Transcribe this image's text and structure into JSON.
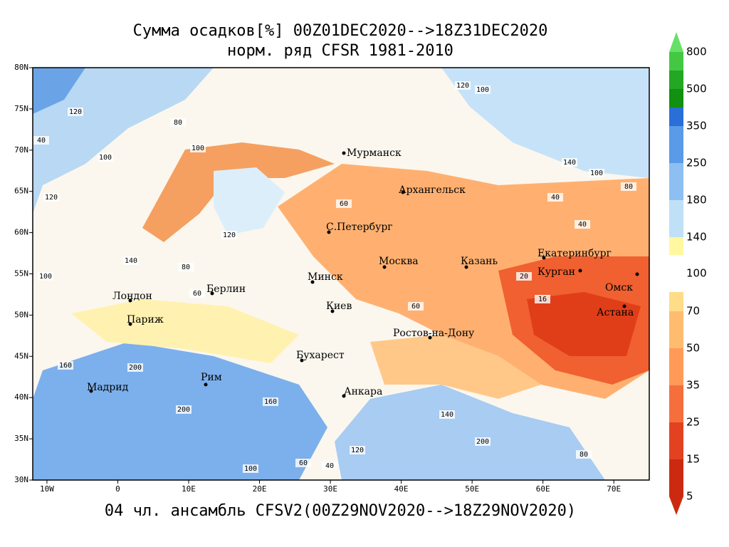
{
  "title": "Сумма осадков[%] 00Z01DEC2020-->18Z31DEC2020",
  "subtitle": "норм. ряд CFSR 1981-2010",
  "footer": "04 чл. ансамбль CFSV2(00Z29NOV2020-->18Z29NOV2020)",
  "map": {
    "xlim": [
      -12,
      75
    ],
    "ylim": [
      30,
      80
    ],
    "xticks": [
      {
        "value": -10,
        "label": "10W"
      },
      0,
      {
        "value": 10,
        "label": "10E"
      },
      {
        "value": 20,
        "label": "20E"
      },
      {
        "value": 30,
        "label": "30E"
      },
      {
        "value": 40,
        "label": "40E"
      },
      {
        "value": 50,
        "label": "50E"
      },
      {
        "value": 60,
        "label": "60E"
      },
      {
        "value": 70,
        "label": "70E"
      }
    ],
    "yticks": [
      {
        "value": 30,
        "label": "30N"
      },
      {
        "value": 35,
        "label": "35N"
      },
      {
        "value": 40,
        "label": "40N"
      },
      {
        "value": 45,
        "label": "45N"
      },
      {
        "value": 50,
        "label": "50N"
      },
      {
        "value": 55,
        "label": "55N"
      },
      {
        "value": 60,
        "label": "60N"
      },
      {
        "value": 65,
        "label": "65N"
      },
      {
        "value": 70,
        "label": "70N"
      },
      {
        "value": 75,
        "label": "75N"
      },
      {
        "value": 80,
        "label": "80N"
      }
    ],
    "cities": [
      "Мурманск",
      "Архангельск",
      "С.Петербург",
      "Москва",
      "Казань",
      "Екатеринбург",
      "Курган",
      "Омск",
      "Астана",
      "Минск",
      "Киев",
      "Берлин",
      "Лондон",
      "Париж",
      "Ростов-на-Дону",
      "Бухарест",
      "Рим",
      "Мадрид",
      "Анкара"
    ],
    "contour_labels": [
      120,
      80,
      40,
      100,
      100,
      120,
      120,
      140,
      100,
      80,
      60,
      20,
      16,
      60,
      40,
      40,
      60,
      120,
      100,
      140,
      100,
      80,
      200,
      160,
      200,
      160,
      140,
      200,
      120,
      100,
      60,
      40,
      80
    ]
  },
  "colorbar": {
    "levels": [
      800,
      500,
      350,
      250,
      180,
      140,
      100,
      70,
      50,
      35,
      25,
      15,
      5
    ],
    "colors": [
      "#66e066",
      "#44c844",
      "#22a822",
      "#119011",
      "#2a6fd8",
      "#5a9ae8",
      "#8ebff2",
      "#c0e0f8",
      "#fff8a0",
      "#ffdc88",
      "#ffbc70",
      "#ff9a58",
      "#f56f3c",
      "#e24220",
      "#cc2a10"
    ]
  }
}
